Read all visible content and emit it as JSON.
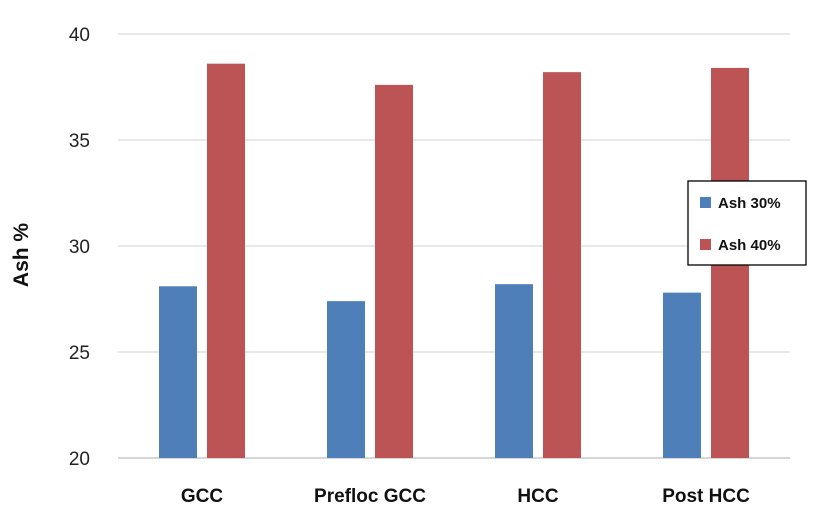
{
  "chart_data": {
    "type": "bar",
    "title": "",
    "xlabel": "",
    "ylabel": "Ash %",
    "categories": [
      "GCC",
      "Prefloc GCC",
      "HCC",
      "Post HCC"
    ],
    "series": [
      {
        "name": "Ash 30%",
        "color": "#4f7fb8",
        "values": [
          28.1,
          27.4,
          28.2,
          27.8
        ]
      },
      {
        "name": "Ash 40%",
        "color": "#bc5355",
        "values": [
          38.6,
          37.6,
          38.2,
          38.4
        ]
      }
    ],
    "ylim": [
      20,
      40
    ],
    "yticks": [
      20,
      25,
      30,
      35,
      40
    ],
    "grid": true,
    "legend_position": "right"
  }
}
